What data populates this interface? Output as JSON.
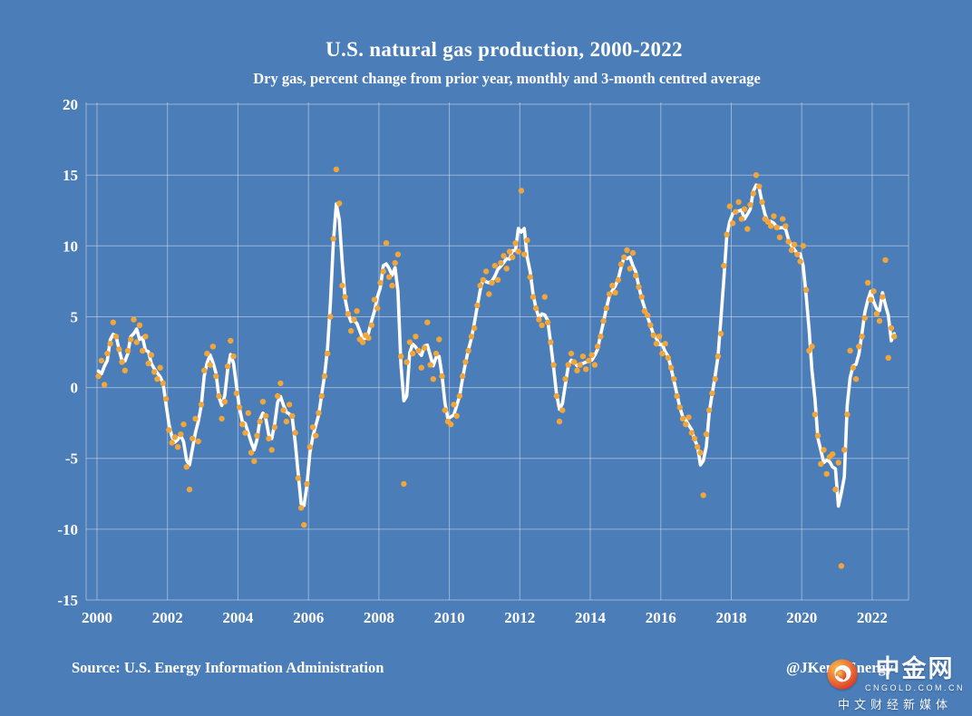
{
  "colors": {
    "background": "#4b7db8",
    "text": "#ffffff",
    "grid": "#e3e9f1",
    "dots": "#f0a63a",
    "line": "#ffffff",
    "logo_outer": "#dc2f23",
    "logo_mid": "#f07030",
    "logo_inner": "#f9c04a"
  },
  "watermark": {
    "brand": "中金网",
    "domain": "CNGOLD.COM.CN",
    "tagline": "中文财经新媒体"
  },
  "chart_data": {
    "type": "line",
    "title": "U.S. natural gas production, 2000-2022",
    "subtitle": "Dry gas, percent change from prior year, monthly and 3-month centred average",
    "source": "Source: U.S. Energy Information Administration",
    "credit": "@JKempEnergy",
    "xlabel": "",
    "ylabel": "",
    "ylim": [
      -15,
      20
    ],
    "yticks": [
      20,
      15,
      10,
      5,
      0,
      -5,
      -10,
      -15
    ],
    "xticks": [
      2000,
      2002,
      2004,
      2006,
      2008,
      2010,
      2012,
      2014,
      2016,
      2018,
      2020,
      2022
    ],
    "grid": true,
    "legend": "none",
    "series": [
      {
        "name": "Monthly percent change",
        "render": "scatter",
        "start_year": 2000,
        "start_month": 1,
        "frequency": "monthly",
        "values": [
          0.8,
          1.9,
          0.2,
          2.4,
          3.1,
          4.6,
          3.6,
          2.7,
          1.8,
          1.2,
          2.6,
          3.4,
          4.8,
          3.2,
          4.4,
          2.6,
          3.6,
          1.7,
          2.3,
          1.1,
          0.6,
          1.4,
          0.3,
          -0.8,
          -3.0,
          -3.9,
          -3.5,
          -4.2,
          -3.3,
          -2.6,
          -5.6,
          -7.2,
          -3.6,
          -2.2,
          -3.8,
          -1.2,
          1.2,
          2.4,
          1.6,
          2.9,
          0.8,
          -0.6,
          -2.2,
          -1.0,
          1.5,
          3.3,
          2.2,
          -0.4,
          -1.4,
          -2.6,
          -3.2,
          -1.8,
          -4.6,
          -5.2,
          -3.4,
          -2.4,
          -1.0,
          -2.0,
          -3.6,
          -4.4,
          -2.8,
          -0.6,
          0.3,
          -1.6,
          -2.4,
          -1.2,
          -2.0,
          -3.2,
          -6.4,
          -8.5,
          -9.7,
          -6.8,
          -4.2,
          -2.8,
          -3.4,
          -1.8,
          -0.6,
          0.8,
          2.4,
          5.0,
          10.5,
          15.4,
          13.0,
          7.2,
          6.4,
          5.2,
          4.0,
          4.8,
          5.4,
          3.4,
          3.2,
          3.7,
          3.5,
          4.4,
          6.2,
          5.6,
          7.4,
          8.2,
          10.2,
          7.8,
          7.2,
          8.8,
          9.4,
          2.2,
          -6.8,
          1.8,
          3.2,
          2.4,
          3.6,
          2.6,
          1.4,
          2.8,
          4.6,
          1.6,
          0.6,
          2.4,
          3.4,
          0.8,
          -1.6,
          -2.4,
          -2.6,
          -1.2,
          -2.0,
          -0.6,
          0.8,
          1.8,
          2.6,
          3.6,
          4.2,
          5.8,
          7.2,
          7.6,
          8.2,
          6.6,
          7.4,
          8.6,
          7.6,
          8.8,
          9.3,
          8.4,
          9.6,
          9.2,
          10.2,
          9.6,
          13.9,
          9.4,
          10.4,
          7.8,
          6.4,
          5.6,
          4.8,
          4.4,
          6.4,
          4.6,
          3.2,
          1.6,
          -0.6,
          -2.4,
          -1.6,
          0.6,
          1.6,
          2.4,
          1.8,
          1.2,
          1.6,
          2.2,
          1.3,
          1.9,
          2.3,
          1.6,
          2.9,
          3.6,
          4.7,
          5.6,
          6.6,
          7.2,
          6.7,
          7.6,
          8.7,
          9.2,
          9.7,
          8.4,
          9.5,
          7.9,
          7.1,
          6.4,
          5.4,
          5.1,
          4.4,
          3.7,
          3.1,
          3.6,
          2.4,
          3.1,
          2.1,
          1.4,
          0.6,
          -0.6,
          -1.4,
          -2.2,
          -2.6,
          -2.1,
          -3.2,
          -3.6,
          -4.2,
          -4.6,
          -7.6,
          -3.3,
          -1.6,
          -0.4,
          0.6,
          2.2,
          3.8,
          8.6,
          10.8,
          12.8,
          11.6,
          12.4,
          13.1,
          11.9,
          12.6,
          11.2,
          12.9,
          13.7,
          15.0,
          14.2,
          13.1,
          11.9,
          11.7,
          11.4,
          12.1,
          11.3,
          10.6,
          11.9,
          11.4,
          10.3,
          9.7,
          10.1,
          9.4,
          8.9,
          10.0,
          6.9,
          2.6,
          2.9,
          -1.9,
          -3.4,
          -5.4,
          -4.4,
          -6.1,
          -4.9,
          -4.7,
          -7.2,
          -5.3,
          -12.6,
          -4.4,
          -1.9,
          2.6,
          1.4,
          0.6,
          2.9,
          3.6,
          4.9,
          7.4,
          6.2,
          6.8,
          5.2,
          4.7,
          6.4,
          9.0,
          2.1,
          4.2,
          3.6
        ]
      },
      {
        "name": "3-month centred average",
        "render": "line",
        "derived_from": "Monthly percent change",
        "window": 3
      }
    ]
  }
}
